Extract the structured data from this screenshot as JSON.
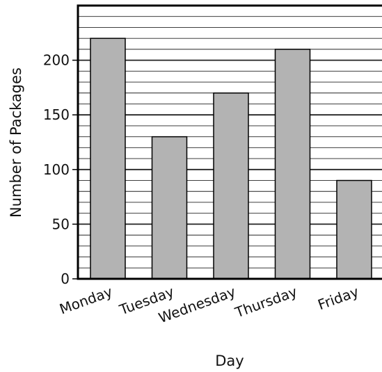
{
  "chart_data": {
    "type": "bar",
    "categories": [
      "Monday",
      "Tuesday",
      "Wednesday",
      "Thursday",
      "Friday"
    ],
    "values": [
      220,
      130,
      170,
      210,
      90
    ],
    "xlabel": "Day",
    "ylabel": "Number of Packages",
    "ylim": [
      0,
      250
    ],
    "yticks": [
      "0",
      "50",
      "100",
      "150",
      "200"
    ],
    "grid": true,
    "minor_grid_step": 10,
    "bar_color": "#b3b3b3",
    "grid_color": "#222222"
  }
}
